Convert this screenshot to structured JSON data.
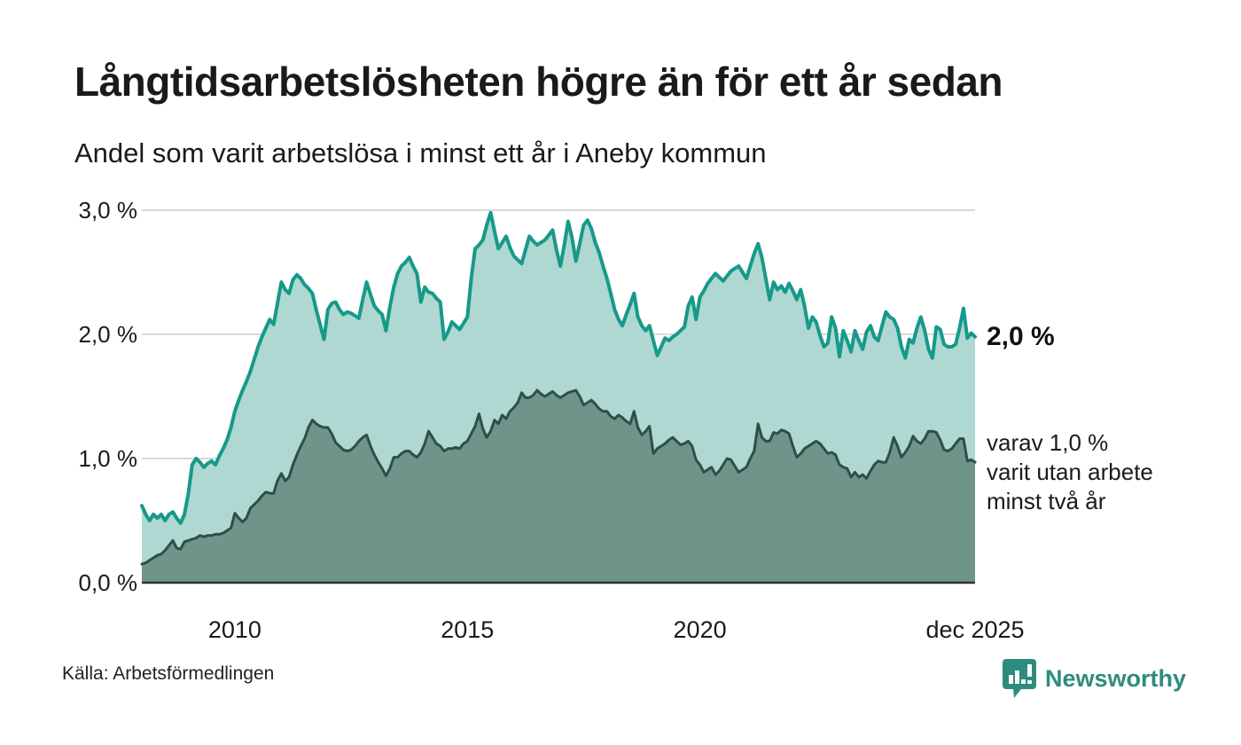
{
  "chart_data": {
    "type": "area",
    "title": "Långtidsarbetslösheten högre än för ett år sedan",
    "subtitle": "Andel som varit arbetslösa i minst ett år i Aneby kommun",
    "unit": "%",
    "frequency": "monthly",
    "period": {
      "start": "2008-01",
      "end": "2025-12"
    },
    "ylim": [
      0,
      3
    ],
    "grid": "horizontal",
    "legend_position": "none",
    "y_ticks": [
      {
        "label": "0,0 %",
        "value": 0
      },
      {
        "label": "1,0 %",
        "value": 1
      },
      {
        "label": "2,0 %",
        "value": 2
      },
      {
        "label": "3,0 %",
        "value": 3
      }
    ],
    "x_ticks": [
      {
        "label": "2010",
        "month_index": 24
      },
      {
        "label": "2015",
        "month_index": 84
      },
      {
        "label": "2020",
        "month_index": 144
      },
      {
        "label": "dec 2025",
        "month_index": 215
      }
    ],
    "series": [
      {
        "name": "Andel som varit arbetslösa i minst ett år",
        "line_color": "#17998a",
        "fill_color": "#aed8d1",
        "line_width": 4,
        "values": [
          0.62,
          0.55,
          0.5,
          0.55,
          0.52,
          0.55,
          0.5,
          0.55,
          0.57,
          0.52,
          0.48,
          0.55,
          0.72,
          0.95,
          1.0,
          0.97,
          0.93,
          0.96,
          0.98,
          0.95,
          1.02,
          1.08,
          1.15,
          1.25,
          1.38,
          1.47,
          1.55,
          1.62,
          1.7,
          1.8,
          1.9,
          1.98,
          2.05,
          2.12,
          2.08,
          2.25,
          2.42,
          2.36,
          2.33,
          2.44,
          2.48,
          2.45,
          2.4,
          2.37,
          2.33,
          2.2,
          2.08,
          1.96,
          2.2,
          2.25,
          2.26,
          2.2,
          2.16,
          2.18,
          2.17,
          2.15,
          2.13,
          2.28,
          2.42,
          2.32,
          2.23,
          2.19,
          2.16,
          2.03,
          2.22,
          2.38,
          2.49,
          2.55,
          2.58,
          2.62,
          2.55,
          2.49,
          2.26,
          2.38,
          2.34,
          2.33,
          2.29,
          2.26,
          1.96,
          2.02,
          2.1,
          2.07,
          2.04,
          2.09,
          2.14,
          2.45,
          2.69,
          2.72,
          2.76,
          2.88,
          2.98,
          2.83,
          2.69,
          2.74,
          2.79,
          2.7,
          2.63,
          2.6,
          2.57,
          2.68,
          2.79,
          2.75,
          2.72,
          2.74,
          2.76,
          2.8,
          2.84,
          2.68,
          2.55,
          2.72,
          2.91,
          2.78,
          2.59,
          2.73,
          2.88,
          2.92,
          2.85,
          2.74,
          2.66,
          2.55,
          2.45,
          2.33,
          2.2,
          2.12,
          2.07,
          2.16,
          2.24,
          2.33,
          2.14,
          2.07,
          2.03,
          2.07,
          1.95,
          1.83,
          1.9,
          1.97,
          1.95,
          1.98,
          2.0,
          2.03,
          2.06,
          2.23,
          2.3,
          2.12,
          2.3,
          2.35,
          2.41,
          2.45,
          2.49,
          2.46,
          2.43,
          2.47,
          2.51,
          2.53,
          2.55,
          2.5,
          2.45,
          2.55,
          2.65,
          2.73,
          2.62,
          2.45,
          2.28,
          2.42,
          2.36,
          2.39,
          2.34,
          2.41,
          2.35,
          2.28,
          2.36,
          2.23,
          2.05,
          2.14,
          2.1,
          1.99,
          1.9,
          1.93,
          2.14,
          2.05,
          1.82,
          2.03,
          1.95,
          1.86,
          2.03,
          1.95,
          1.88,
          2.02,
          2.07,
          1.98,
          1.95,
          2.07,
          2.18,
          2.14,
          2.12,
          2.05,
          1.9,
          1.81,
          1.96,
          1.93,
          2.05,
          2.14,
          2.03,
          1.88,
          1.81,
          2.06,
          2.04,
          1.92,
          1.9,
          1.9,
          1.92,
          2.05,
          2.21,
          1.97,
          2.01,
          1.98
        ]
      },
      {
        "name": "varav varit utan arbete minst två år",
        "line_color": "#2d4f47",
        "fill_color": "#6f958b",
        "line_width": 3,
        "values": [
          0.15,
          0.16,
          0.18,
          0.2,
          0.22,
          0.23,
          0.26,
          0.3,
          0.34,
          0.28,
          0.27,
          0.33,
          0.34,
          0.35,
          0.36,
          0.38,
          0.37,
          0.38,
          0.38,
          0.39,
          0.39,
          0.4,
          0.42,
          0.44,
          0.56,
          0.52,
          0.49,
          0.52,
          0.6,
          0.63,
          0.66,
          0.7,
          0.73,
          0.72,
          0.72,
          0.82,
          0.88,
          0.82,
          0.85,
          0.95,
          1.03,
          1.1,
          1.16,
          1.25,
          1.31,
          1.28,
          1.26,
          1.25,
          1.25,
          1.2,
          1.13,
          1.1,
          1.07,
          1.06,
          1.07,
          1.1,
          1.14,
          1.17,
          1.19,
          1.1,
          1.03,
          0.97,
          0.92,
          0.86,
          0.92,
          1.01,
          1.01,
          1.04,
          1.06,
          1.06,
          1.03,
          1.01,
          1.05,
          1.12,
          1.22,
          1.17,
          1.12,
          1.1,
          1.06,
          1.08,
          1.08,
          1.09,
          1.08,
          1.12,
          1.14,
          1.2,
          1.26,
          1.36,
          1.24,
          1.17,
          1.22,
          1.31,
          1.28,
          1.35,
          1.32,
          1.38,
          1.41,
          1.45,
          1.53,
          1.49,
          1.49,
          1.51,
          1.55,
          1.52,
          1.5,
          1.52,
          1.54,
          1.51,
          1.49,
          1.51,
          1.53,
          1.54,
          1.55,
          1.5,
          1.43,
          1.45,
          1.47,
          1.44,
          1.4,
          1.38,
          1.38,
          1.34,
          1.32,
          1.35,
          1.33,
          1.3,
          1.28,
          1.38,
          1.25,
          1.19,
          1.22,
          1.26,
          1.04,
          1.08,
          1.1,
          1.12,
          1.15,
          1.17,
          1.14,
          1.11,
          1.12,
          1.14,
          1.1,
          0.99,
          0.95,
          0.89,
          0.91,
          0.93,
          0.87,
          0.9,
          0.95,
          1.0,
          0.99,
          0.94,
          0.89,
          0.91,
          0.93,
          1.0,
          1.06,
          1.28,
          1.17,
          1.14,
          1.14,
          1.21,
          1.2,
          1.23,
          1.22,
          1.2,
          1.1,
          1.01,
          1.04,
          1.08,
          1.1,
          1.12,
          1.14,
          1.12,
          1.08,
          1.04,
          1.05,
          1.03,
          0.95,
          0.93,
          0.92,
          0.85,
          0.89,
          0.85,
          0.87,
          0.84,
          0.9,
          0.95,
          0.98,
          0.97,
          0.97,
          1.05,
          1.17,
          1.1,
          1.01,
          1.05,
          1.1,
          1.18,
          1.14,
          1.12,
          1.16,
          1.22,
          1.22,
          1.21,
          1.15,
          1.07,
          1.06,
          1.08,
          1.12,
          1.16,
          1.16,
          0.98,
          0.99,
          0.97
        ]
      }
    ],
    "annotations": {
      "end_label": "2,0 %",
      "note": "varav 1,0 %\nvarit utan arbete\nminst två år"
    }
  },
  "footer": {
    "source": "Källa: Arbetsförmedlingen",
    "brand": "Newsworthy"
  },
  "colors": {
    "accent": "#17998a",
    "brand": "#2e8c7e",
    "text": "#1a1a1a",
    "grid": "#d9d9d9",
    "axis": "#333333"
  }
}
